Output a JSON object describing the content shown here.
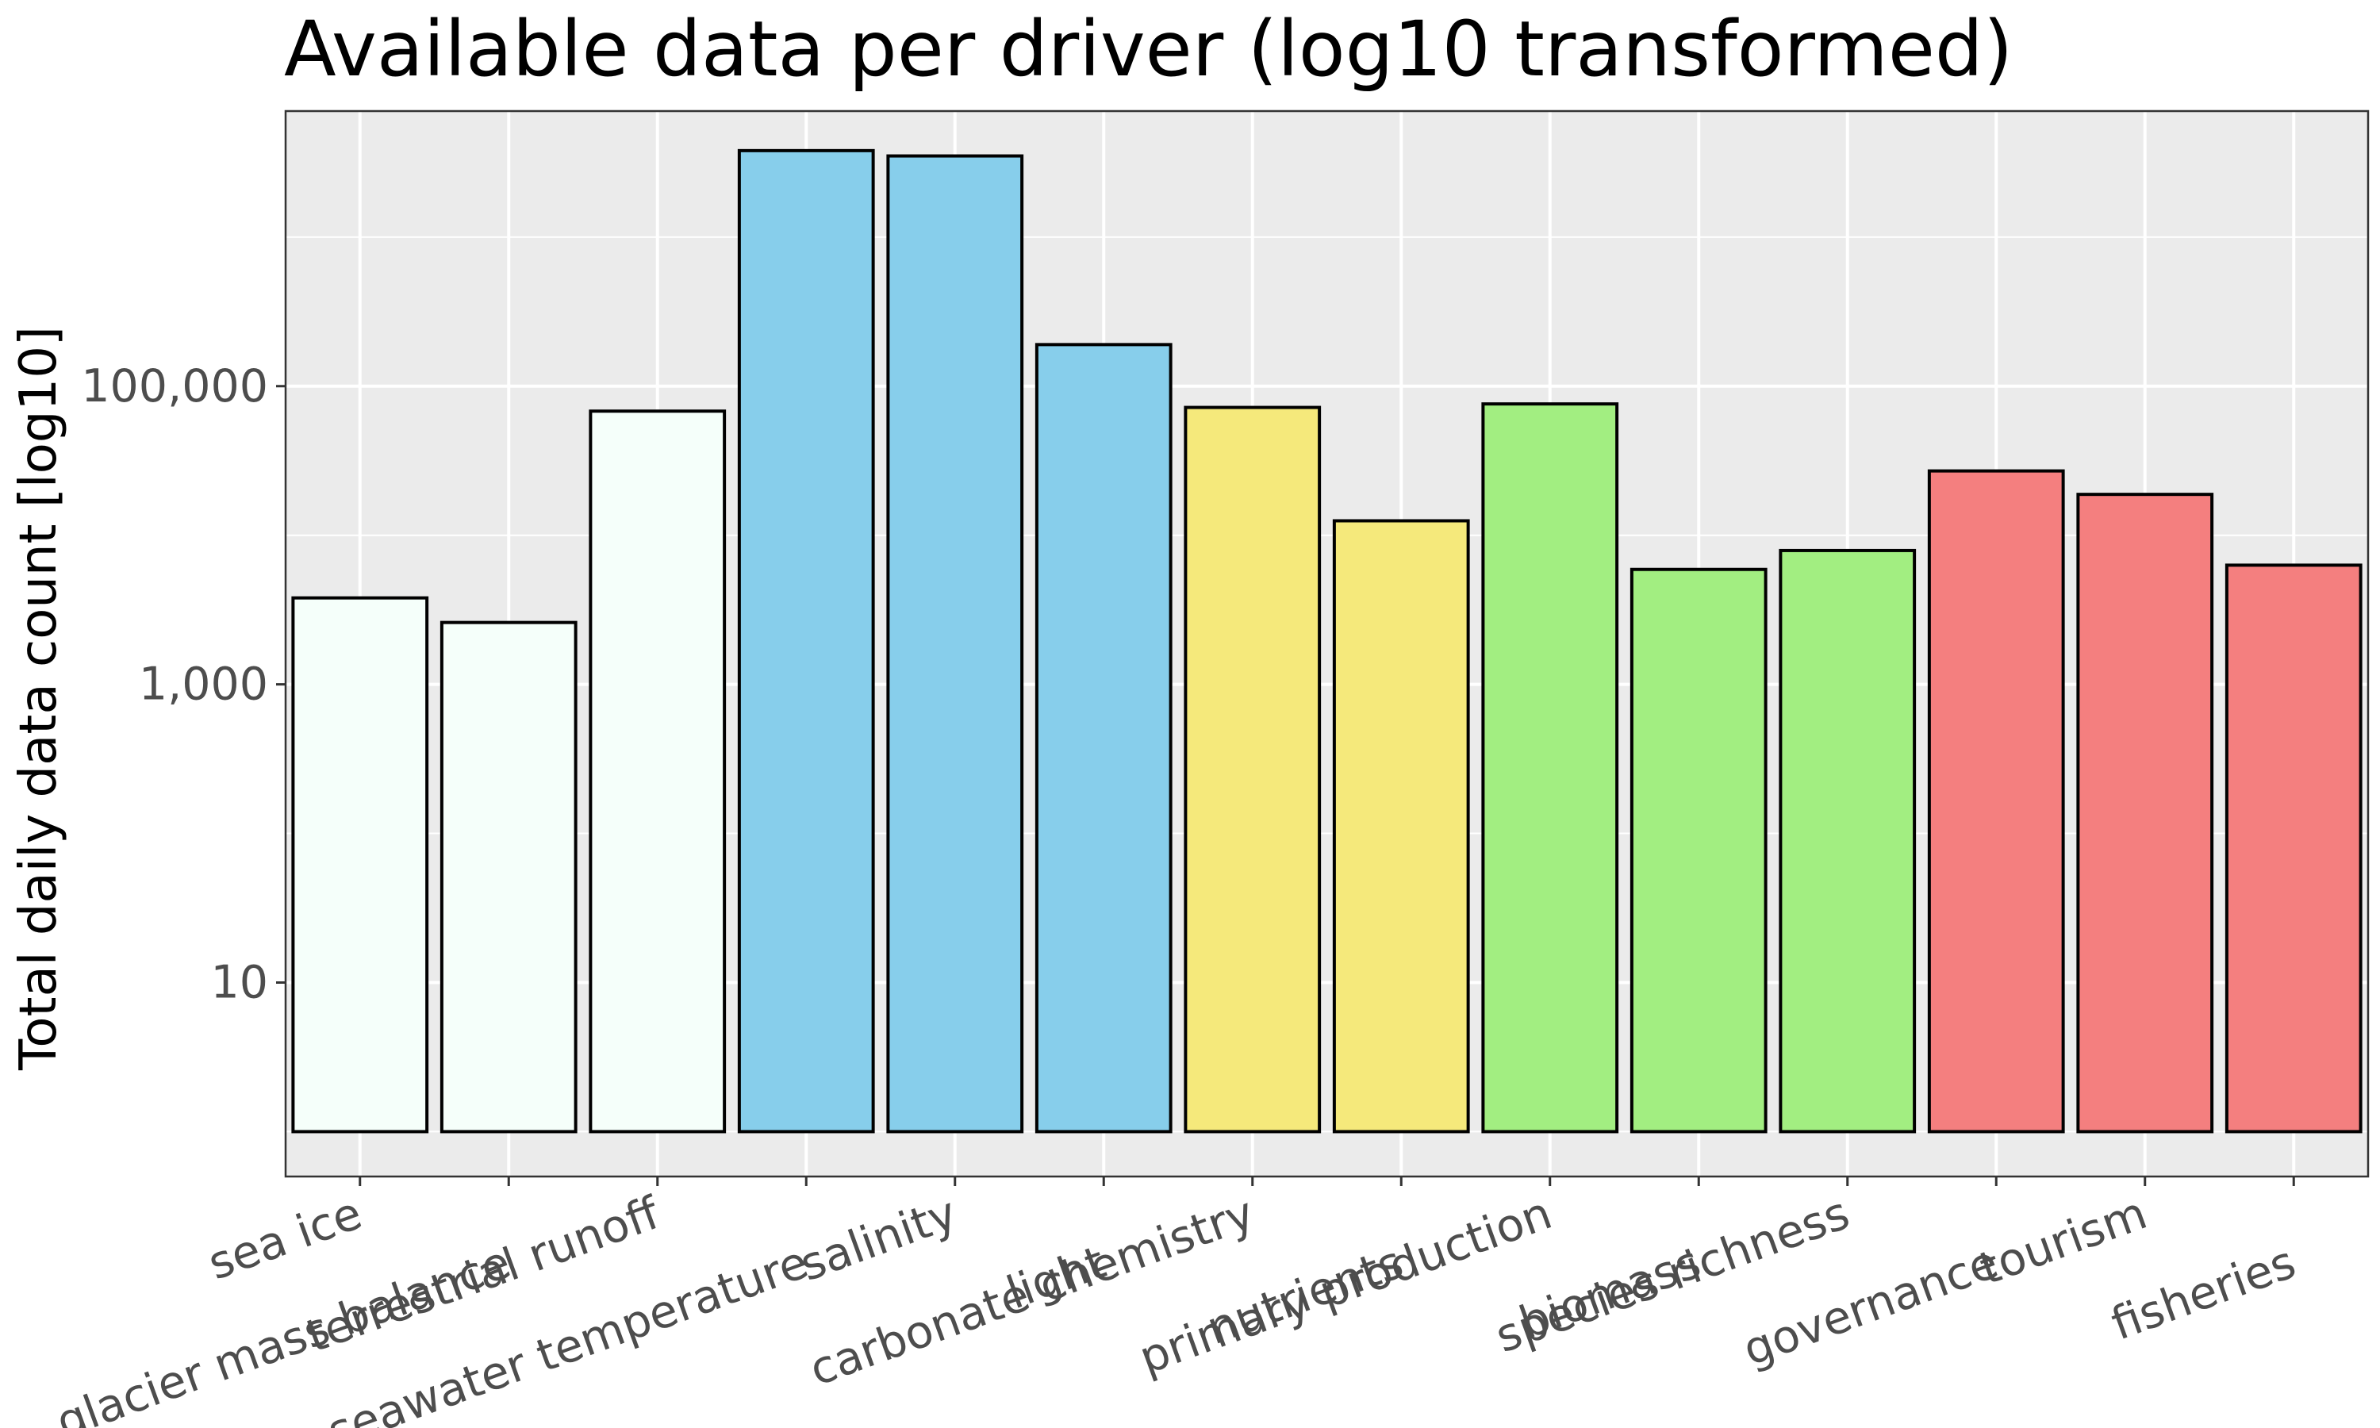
{
  "chart_data": {
    "type": "bar",
    "title": "Available data per driver (log10 transformed)",
    "xlabel": "",
    "ylabel": "Total daily data count [log10]",
    "y_scale": "log10",
    "y_ticks": [
      {
        "value": 10,
        "label": "10"
      },
      {
        "value": 1000,
        "label": "1,000"
      },
      {
        "value": 100000,
        "label": "100,000"
      }
    ],
    "ylim": [
      0.5,
      7000000
    ],
    "bar_base": 1,
    "grid": true,
    "categories": [
      "sea ice",
      "glacier mass balance",
      "terrestrial runoff",
      "seawater temperature",
      "salinity",
      "light",
      "carbonate chemistry",
      "nutrients",
      "primary production",
      "biomass",
      "species richness",
      "governance",
      "tourism",
      "fisheries"
    ],
    "values": [
      3800,
      2600,
      68000,
      3800000,
      3500000,
      190000,
      72000,
      12500,
      76000,
      5900,
      7900,
      27000,
      18800,
      6300
    ],
    "colors": [
      "#f5fffa",
      "#f5fffa",
      "#f5fffa",
      "#87ceeb",
      "#87ceeb",
      "#87ceeb",
      "#f5e97b",
      "#f5e97b",
      "#a2ee81",
      "#a2ee81",
      "#a2ee81",
      "#f47f7f",
      "#f47f7f",
      "#f47f7f"
    ],
    "bar_stroke": "#000000",
    "panel_background": "#ebebeb",
    "grid_color": "#ffffff"
  }
}
